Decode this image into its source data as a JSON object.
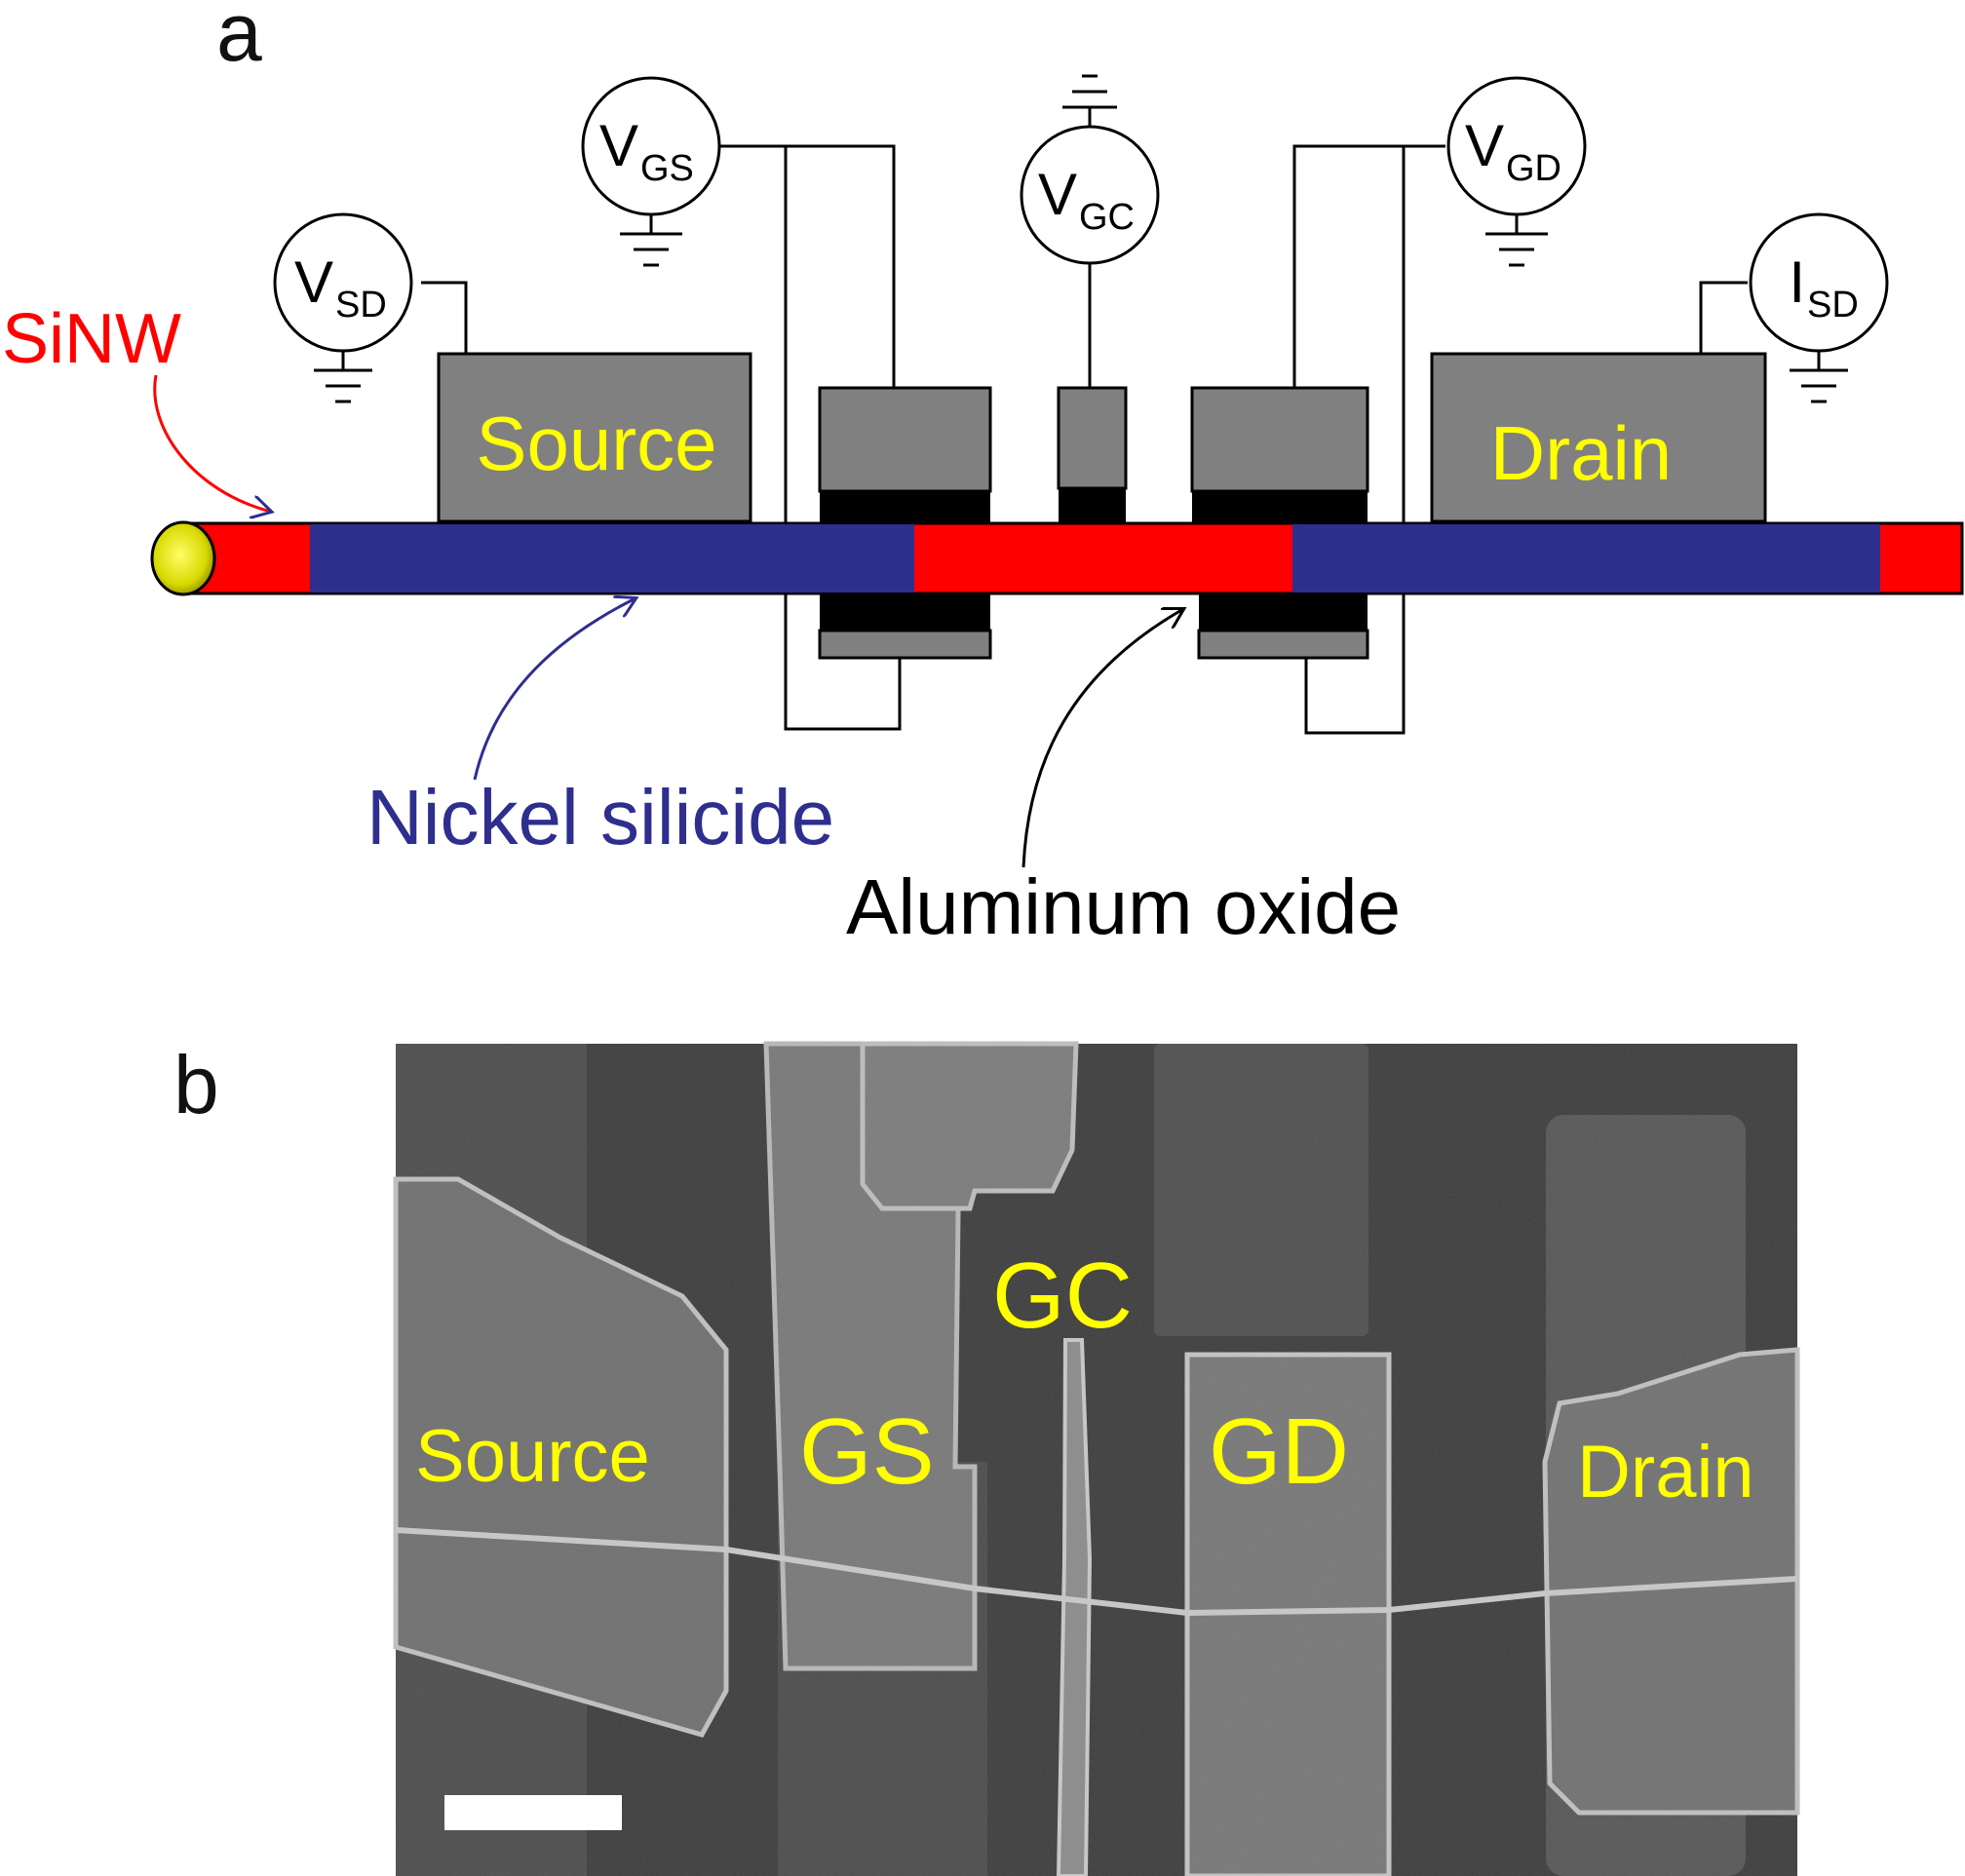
{
  "panel_a": {
    "letter": "a",
    "electrodes": {
      "source": "Source",
      "drain": "Drain"
    },
    "meters": [
      {
        "main": "V",
        "sub": "SD"
      },
      {
        "main": "V",
        "sub": "GS"
      },
      {
        "main": "V",
        "sub": "GC"
      },
      {
        "main": "V",
        "sub": "GD"
      },
      {
        "main": "I",
        "sub": "SD"
      }
    ],
    "annotations": {
      "sinw": "SiNW",
      "nickel_silicide": "Nickel silicide",
      "aluminum_oxide": "Aluminum oxide"
    },
    "colors": {
      "sinw": "#ff0000",
      "nickel_silicide": "#2e2e8f",
      "aluminum_oxide": "#000000",
      "electrode": "#808080",
      "label": "#ffff00"
    }
  },
  "panel_b": {
    "letter": "b",
    "labels": {
      "source": "Source",
      "gs": "GS",
      "gc": "GC",
      "gd": "GD",
      "drain": "Drain"
    }
  }
}
